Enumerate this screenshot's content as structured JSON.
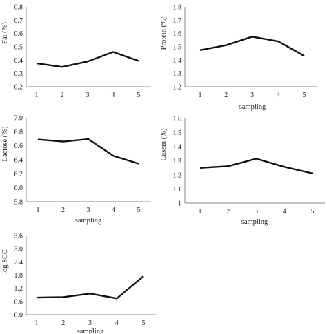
{
  "colors": {
    "line": "#111111",
    "axis": "#8a8a8a",
    "text": "#222222"
  },
  "chart_data": [
    {
      "type": "line",
      "title": "",
      "xlabel": "",
      "ylabel": "Fat (%)",
      "categories": [
        "1",
        "2",
        "3",
        "4",
        "5"
      ],
      "values": [
        0.376,
        0.349,
        0.39,
        0.461,
        0.394
      ],
      "ylim": [
        0.2,
        0.8
      ],
      "yticks": [
        "0.2",
        "0.3",
        "0.4",
        "0.5",
        "0.6",
        "0.7",
        "0.8"
      ],
      "grid": false,
      "legend": "none"
    },
    {
      "type": "line",
      "title": "",
      "xlabel": "sampling",
      "ylabel": "Protein (%)",
      "categories": [
        "1",
        "2",
        "3",
        "4",
        "5"
      ],
      "values": [
        1.475,
        1.512,
        1.576,
        1.541,
        1.432
      ],
      "ylim": [
        1.2,
        1.8
      ],
      "yticks": [
        "1.2",
        "1.3",
        "1.4",
        "1.5",
        "1.6",
        "1.7",
        "1.8"
      ],
      "grid": false,
      "legend": "none"
    },
    {
      "type": "line",
      "title": "",
      "xlabel": "sampling",
      "ylabel": "Lactose (%)",
      "categories": [
        "1",
        "2",
        "3",
        "4",
        "5"
      ],
      "values": [
        6.69,
        6.66,
        6.695,
        6.455,
        6.345
      ],
      "ylim": [
        5.8,
        7.0
      ],
      "yticks": [
        "5.8",
        "6.0",
        "6.2",
        "6.4",
        "6.6",
        "6.8",
        "7.0"
      ],
      "grid": false,
      "legend": "none"
    },
    {
      "type": "line",
      "title": "",
      "xlabel": "sampling",
      "ylabel": "Casein (%)",
      "categories": [
        "1",
        "2",
        "3",
        "4",
        "5"
      ],
      "values": [
        1.25,
        1.262,
        1.315,
        1.257,
        1.211
      ],
      "ylim": [
        1.0,
        1.6
      ],
      "yticks": [
        "1",
        "1.1",
        "1.2",
        "1.3",
        "1.4",
        "1.5",
        "1.6"
      ],
      "grid": false,
      "legend": "none"
    },
    {
      "type": "line",
      "title": "",
      "xlabel": "sampling",
      "ylabel": "log SCC",
      "categories": [
        "1",
        "2",
        "3",
        "4",
        "5"
      ],
      "values": [
        0.78,
        0.8,
        0.96,
        0.74,
        1.75
      ],
      "ylim": [
        0,
        3.6
      ],
      "yticks": [
        "0.0",
        "0.6",
        "1.2",
        "1.8",
        "2.4",
        "3.0",
        "3.6"
      ],
      "grid": false,
      "legend": "none"
    }
  ]
}
